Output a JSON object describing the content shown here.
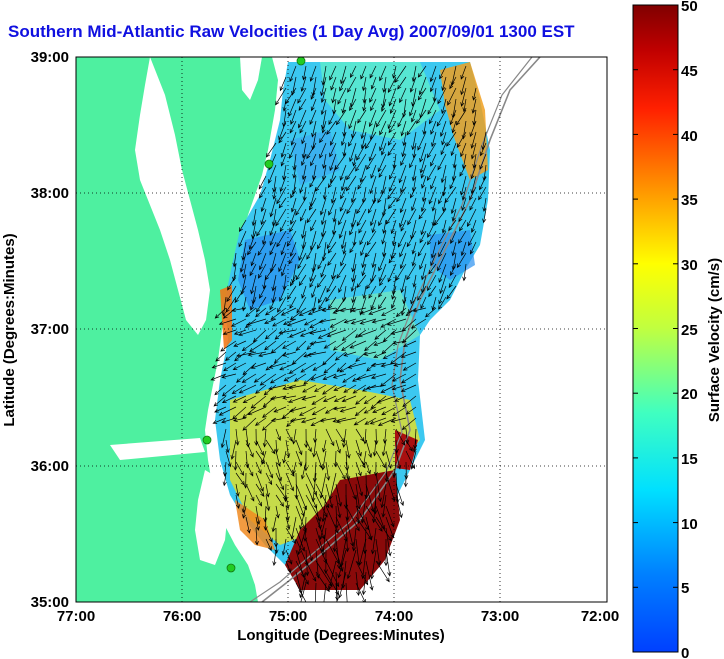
{
  "title": "Southern Mid-Atlantic Raw Velocities (1 Day Avg) 2007/09/01 1300 EST",
  "map": {
    "xlabel": "Longitude (Degrees:Minutes)",
    "ylabel": "Latitude (Degrees:Minutes)",
    "x_ticks": [
      "77:00",
      "76:00",
      "75:00",
      "74:00",
      "73:00",
      "72:00"
    ],
    "y_ticks": [
      "39:00",
      "38:00",
      "37:00",
      "36:00",
      "35:00"
    ],
    "lon_range": [
      -77,
      -72
    ],
    "lat_range": [
      35,
      39
    ],
    "grid": true,
    "land_color": "#4ef0a0",
    "water_color": "#ffffff",
    "station_color": "#22cc22"
  },
  "colorbar": {
    "label": "Surface Velocity (cm/s)",
    "ticks": [
      "50",
      "45",
      "40",
      "35",
      "30",
      "25",
      "20",
      "15",
      "10",
      "5",
      "0"
    ],
    "range": [
      0,
      50
    ],
    "colormap": "jet"
  }
}
